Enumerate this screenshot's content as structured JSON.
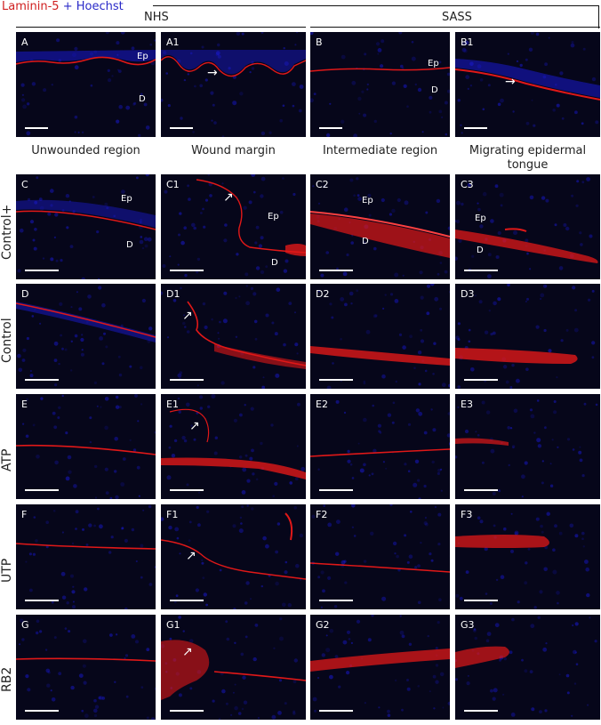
{
  "figure": {
    "title_red": "Laminin-5",
    "title_plus": "+",
    "title_blue": "Hoechst",
    "group_nhs": "NHS",
    "group_sass": "SASS",
    "columns": [
      "Unwounded region",
      "Wound margin",
      "Intermediate region",
      "Migrating epidermal tongue"
    ],
    "rows": [
      "Control+",
      "Control",
      "ATP",
      "UTP",
      "RB2"
    ],
    "top_panels": [
      "A",
      "A1",
      "B",
      "B1"
    ],
    "panels": {
      "r0": [
        "C",
        "C1",
        "C2",
        "C3"
      ],
      "r1": [
        "D",
        "D1",
        "D2",
        "D3"
      ],
      "r2": [
        "E",
        "E1",
        "E2",
        "E3"
      ],
      "r3": [
        "F",
        "F1",
        "F2",
        "F3"
      ],
      "r4": [
        "G",
        "G1",
        "G2",
        "G3"
      ]
    },
    "tissue_labels": {
      "ep": "Ep",
      "d": "D"
    },
    "arrow_glyph": "→",
    "arrow_up_glyph": "↗",
    "colors": {
      "laminin": "#e01818",
      "hoechst": "#1a1ae0",
      "background": "#06061a"
    }
  }
}
